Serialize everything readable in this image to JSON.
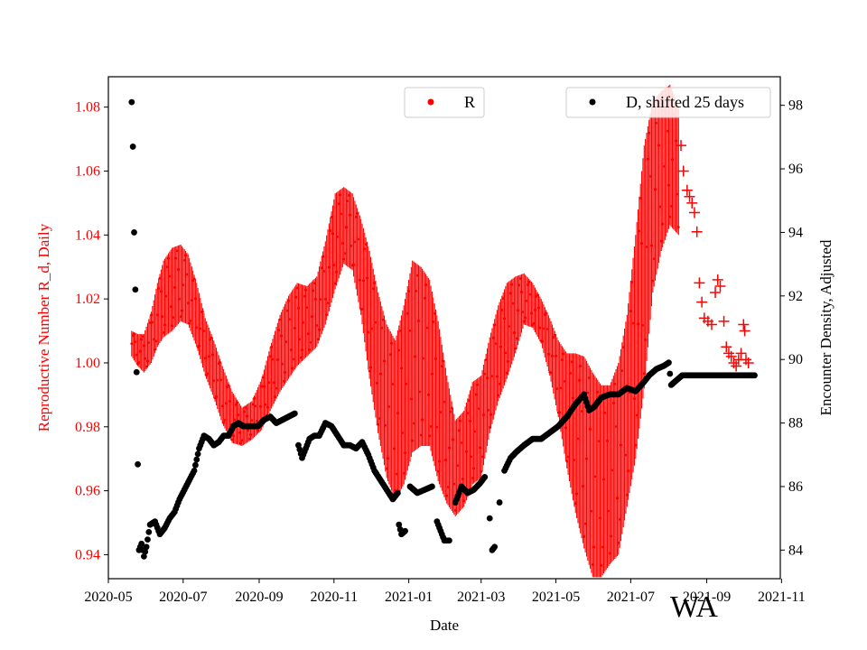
{
  "chart_data": {
    "type": "scatter",
    "title": "",
    "xlabel": "Date",
    "ylabel_left": "Reproductive Number R_d, Daily",
    "ylabel_right": "Encounter Density, Adjusted",
    "watermark": "WA",
    "x_range": [
      "2020-05-01",
      "2021-10-31"
    ],
    "y_left_range": [
      0.9325,
      1.0895
    ],
    "y_right_range": [
      83.1,
      98.9
    ],
    "x_ticks": [
      "2020-05",
      "2020-07",
      "2020-09",
      "2020-11",
      "2021-01",
      "2021-03",
      "2021-05",
      "2021-07",
      "2021-09",
      "2021-11"
    ],
    "y_left_ticks": [
      "0.94",
      "0.96",
      "0.98",
      "1.00",
      "1.02",
      "1.04",
      "1.06",
      "1.08"
    ],
    "y_right_ticks": [
      "84",
      "86",
      "88",
      "90",
      "92",
      "94",
      "96",
      "98"
    ],
    "colors": {
      "r": "#ff0000",
      "d": "#000000",
      "axis": "#000000"
    },
    "legend": [
      {
        "label": "R",
        "color": "#ff0000",
        "marker": "circle"
      },
      {
        "label": "D, shifted 25 days",
        "color": "#000000",
        "marker": "circle"
      }
    ],
    "series": [
      {
        "name": "R",
        "axis": "left",
        "marker": "vertical band with dots",
        "points": [
          [
            "2020-05-20",
            1.006,
            0.004
          ],
          [
            "2020-05-25",
            1.004,
            0.005
          ],
          [
            "2020-05-30",
            1.003,
            0.006
          ],
          [
            "2020-06-05",
            1.008,
            0.008
          ],
          [
            "2020-06-10",
            1.015,
            0.01
          ],
          [
            "2020-06-15",
            1.02,
            0.012
          ],
          [
            "2020-06-22",
            1.023,
            0.013
          ],
          [
            "2020-06-29",
            1.025,
            0.012
          ],
          [
            "2020-07-05",
            1.023,
            0.011
          ],
          [
            "2020-07-12",
            1.015,
            0.01
          ],
          [
            "2020-07-19",
            1.005,
            0.009
          ],
          [
            "2020-07-26",
            0.998,
            0.009
          ],
          [
            "2020-08-02",
            0.99,
            0.009
          ],
          [
            "2020-08-10",
            0.983,
            0.008
          ],
          [
            "2020-08-18",
            0.98,
            0.006
          ],
          [
            "2020-08-26",
            0.982,
            0.006
          ],
          [
            "2020-09-03",
            0.987,
            0.008
          ],
          [
            "2020-09-10",
            0.995,
            0.01
          ],
          [
            "2020-09-18",
            1.003,
            0.012
          ],
          [
            "2020-09-25",
            1.008,
            0.013
          ],
          [
            "2020-10-02",
            1.012,
            0.013
          ],
          [
            "2020-10-10",
            1.013,
            0.011
          ],
          [
            "2020-10-18",
            1.016,
            0.011
          ],
          [
            "2020-10-25",
            1.025,
            0.013
          ],
          [
            "2020-11-02",
            1.038,
            0.015
          ],
          [
            "2020-11-09",
            1.043,
            0.012
          ],
          [
            "2020-11-16",
            1.041,
            0.012
          ],
          [
            "2020-11-23",
            1.03,
            0.015
          ],
          [
            "2020-11-30",
            1.015,
            0.02
          ],
          [
            "2020-12-07",
            1.0,
            0.022
          ],
          [
            "2020-12-14",
            0.988,
            0.024
          ],
          [
            "2020-12-21",
            0.982,
            0.025
          ],
          [
            "2020-12-28",
            0.99,
            0.028
          ],
          [
            "2021-01-04",
            1.002,
            0.03
          ],
          [
            "2021-01-11",
            1.002,
            0.028
          ],
          [
            "2021-01-18",
            1.0,
            0.026
          ],
          [
            "2021-01-25",
            0.988,
            0.025
          ],
          [
            "2021-02-01",
            0.976,
            0.02
          ],
          [
            "2021-02-08",
            0.967,
            0.015
          ],
          [
            "2021-02-15",
            0.97,
            0.015
          ],
          [
            "2021-02-22",
            0.978,
            0.016
          ],
          [
            "2021-03-01",
            0.98,
            0.016
          ],
          [
            "2021-03-08",
            0.993,
            0.015
          ],
          [
            "2021-03-15",
            1.003,
            0.015
          ],
          [
            "2021-03-22",
            1.01,
            0.015
          ],
          [
            "2021-03-29",
            1.015,
            0.012
          ],
          [
            "2021-04-05",
            1.02,
            0.008
          ],
          [
            "2021-04-12",
            1.018,
            0.007
          ],
          [
            "2021-04-19",
            1.013,
            0.007
          ],
          [
            "2021-04-26",
            1.005,
            0.009
          ],
          [
            "2021-05-03",
            0.995,
            0.012
          ],
          [
            "2021-05-10",
            0.985,
            0.018
          ],
          [
            "2021-05-17",
            0.978,
            0.025
          ],
          [
            "2021-05-24",
            0.972,
            0.03
          ],
          [
            "2021-05-31",
            0.965,
            0.032
          ],
          [
            "2021-06-07",
            0.963,
            0.03
          ],
          [
            "2021-06-14",
            0.965,
            0.028
          ],
          [
            "2021-06-21",
            0.97,
            0.03
          ],
          [
            "2021-06-28",
            0.985,
            0.03
          ],
          [
            "2021-07-05",
            1.005,
            0.035
          ],
          [
            "2021-07-12",
            1.03,
            0.038
          ],
          [
            "2021-07-19",
            1.052,
            0.03
          ],
          [
            "2021-07-26",
            1.06,
            0.025
          ],
          [
            "2021-08-02",
            1.065,
            0.022
          ],
          [
            "2021-08-09",
            1.06,
            0.02
          ]
        ],
        "cross_points": [
          [
            "2021-08-11",
            1.068
          ],
          [
            "2021-08-13",
            1.06
          ],
          [
            "2021-08-16",
            1.054
          ],
          [
            "2021-08-18",
            1.052
          ],
          [
            "2021-08-20",
            1.05
          ],
          [
            "2021-08-22",
            1.047
          ],
          [
            "2021-08-24",
            1.041
          ],
          [
            "2021-08-26",
            1.025
          ],
          [
            "2021-08-28",
            1.019
          ],
          [
            "2021-08-30",
            1.014
          ],
          [
            "2021-09-02",
            1.013
          ],
          [
            "2021-09-05",
            1.012
          ],
          [
            "2021-09-08",
            1.022
          ],
          [
            "2021-09-10",
            1.026
          ],
          [
            "2021-09-12",
            1.024
          ],
          [
            "2021-09-15",
            1.013
          ],
          [
            "2021-09-17",
            1.005
          ],
          [
            "2021-09-19",
            1.003
          ],
          [
            "2021-09-21",
            1.002
          ],
          [
            "2021-09-23",
            1.0
          ],
          [
            "2021-09-25",
            0.999
          ],
          [
            "2021-09-27",
            1.001
          ],
          [
            "2021-09-29",
            1.003
          ],
          [
            "2021-10-01",
            1.012
          ],
          [
            "2021-10-02",
            1.01
          ],
          [
            "2021-10-03",
            1.001
          ],
          [
            "2021-10-05",
            1.0
          ]
        ]
      },
      {
        "name": "D, shifted 25 days",
        "axis": "right",
        "marker": "dot",
        "points": [
          [
            "2020-05-20",
            98.1
          ],
          [
            "2020-05-21",
            96.7
          ],
          [
            "2020-05-22",
            94.0
          ],
          [
            "2020-05-23",
            92.2
          ],
          [
            "2020-05-24",
            89.6
          ],
          [
            "2020-05-25",
            86.7
          ],
          [
            "2020-05-26",
            84.0
          ],
          [
            "2020-05-28",
            84.2
          ],
          [
            "2020-05-30",
            83.8
          ],
          [
            "2020-06-01",
            84.1
          ],
          [
            "2020-06-04",
            84.8
          ],
          [
            "2020-06-08",
            84.9
          ],
          [
            "2020-06-12",
            84.5
          ],
          [
            "2020-06-16",
            84.7
          ],
          [
            "2020-06-20",
            85.0
          ],
          [
            "2020-06-24",
            85.2
          ],
          [
            "2020-06-28",
            85.6
          ],
          [
            "2020-07-02",
            85.9
          ],
          [
            "2020-07-06",
            86.2
          ],
          [
            "2020-07-10",
            86.5
          ],
          [
            "2020-07-14",
            87.2
          ],
          [
            "2020-07-18",
            87.6
          ],
          [
            "2020-07-22",
            87.5
          ],
          [
            "2020-07-26",
            87.3
          ],
          [
            "2020-07-30",
            87.4
          ],
          [
            "2020-08-03",
            87.6
          ],
          [
            "2020-08-07",
            87.6
          ],
          [
            "2020-08-11",
            87.9
          ],
          [
            "2020-08-15",
            88.0
          ],
          [
            "2020-08-19",
            87.9
          ],
          [
            "2020-08-25",
            87.9
          ],
          [
            "2020-08-31",
            87.9
          ],
          [
            "2020-09-05",
            88.1
          ],
          [
            "2020-09-10",
            88.2
          ],
          [
            "2020-09-15",
            88.0
          ],
          [
            "2020-09-20",
            88.1
          ],
          [
            "2020-09-25",
            88.2
          ],
          [
            "2020-09-30",
            88.3
          ],
          [
            "2020-10-03",
            87.3
          ],
          [
            "2020-10-06",
            86.9
          ],
          [
            "2020-10-09",
            87.2
          ],
          [
            "2020-10-12",
            87.5
          ],
          [
            "2020-10-16",
            87.6
          ],
          [
            "2020-10-20",
            87.6
          ],
          [
            "2020-10-25",
            88.0
          ],
          [
            "2020-10-30",
            87.9
          ],
          [
            "2020-11-04",
            87.6
          ],
          [
            "2020-11-09",
            87.3
          ],
          [
            "2020-11-14",
            87.3
          ],
          [
            "2020-11-19",
            87.2
          ],
          [
            "2020-11-24",
            87.4
          ],
          [
            "2020-11-29",
            87.0
          ],
          [
            "2020-12-04",
            86.5
          ],
          [
            "2020-12-09",
            86.2
          ],
          [
            "2020-12-14",
            85.9
          ],
          [
            "2020-12-19",
            85.6
          ],
          [
            "2020-12-23",
            85.8
          ],
          [
            "2020-12-24",
            84.8
          ],
          [
            "2020-12-26",
            84.5
          ],
          [
            "2020-12-29",
            84.6
          ],
          [
            "2021-01-02",
            86.0
          ],
          [
            "2021-01-08",
            85.8
          ],
          [
            "2021-01-14",
            85.9
          ],
          [
            "2021-01-20",
            86.0
          ],
          [
            "2021-01-24",
            84.9
          ],
          [
            "2021-01-27",
            84.6
          ],
          [
            "2021-01-30",
            84.3
          ],
          [
            "2021-02-03",
            84.3
          ],
          [
            "2021-02-08",
            85.5
          ],
          [
            "2021-02-13",
            86.0
          ],
          [
            "2021-02-18",
            85.8
          ],
          [
            "2021-02-23",
            85.9
          ],
          [
            "2021-02-28",
            86.1
          ],
          [
            "2021-03-04",
            86.3
          ],
          [
            "2021-03-08",
            85.0
          ],
          [
            "2021-03-10",
            84.0
          ],
          [
            "2021-03-12",
            84.1
          ],
          [
            "2021-03-16",
            85.5
          ],
          [
            "2021-03-20",
            86.5
          ],
          [
            "2021-03-25",
            86.9
          ],
          [
            "2021-03-30",
            87.1
          ],
          [
            "2021-04-05",
            87.3
          ],
          [
            "2021-04-12",
            87.5
          ],
          [
            "2021-04-19",
            87.5
          ],
          [
            "2021-04-26",
            87.7
          ],
          [
            "2021-05-03",
            87.9
          ],
          [
            "2021-05-10",
            88.2
          ],
          [
            "2021-05-17",
            88.6
          ],
          [
            "2021-05-24",
            88.9
          ],
          [
            "2021-05-28",
            88.4
          ],
          [
            "2021-06-01",
            88.5
          ],
          [
            "2021-06-07",
            88.8
          ],
          [
            "2021-06-14",
            88.9
          ],
          [
            "2021-06-21",
            88.9
          ],
          [
            "2021-06-28",
            89.1
          ],
          [
            "2021-07-05",
            89.0
          ],
          [
            "2021-07-12",
            89.3
          ],
          [
            "2021-07-16",
            89.5
          ],
          [
            "2021-07-22",
            89.7
          ],
          [
            "2021-07-28",
            89.8
          ],
          [
            "2021-08-01",
            89.9
          ],
          [
            "2021-08-03",
            89.2
          ],
          [
            "2021-08-06",
            89.3
          ],
          [
            "2021-08-12",
            89.5
          ],
          [
            "2021-08-20",
            89.5
          ],
          [
            "2021-09-01",
            89.5
          ],
          [
            "2021-09-15",
            89.5
          ],
          [
            "2021-09-30",
            89.5
          ],
          [
            "2021-10-10",
            89.5
          ]
        ]
      }
    ]
  }
}
